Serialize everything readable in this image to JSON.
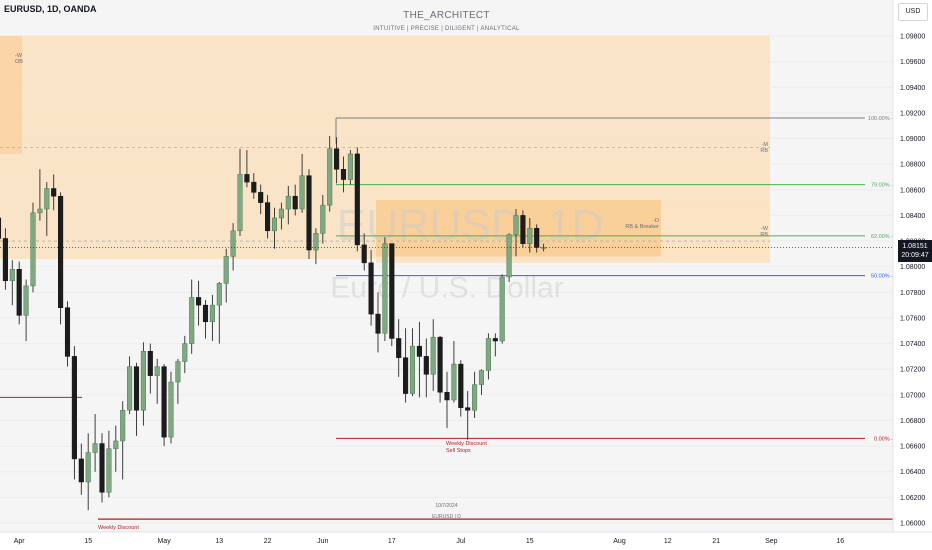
{
  "header": {
    "symbol": "EURUSD, 1D, OANDA",
    "brand": "THE_ARCHITECT",
    "tagline": "INTUITIVE | PRECISE | DILIGENT | ANALYTICAL",
    "currency_button": "USD"
  },
  "watermark": {
    "line1": "EURUSD, 1D",
    "line2": "Euro / U.S. Dollar"
  },
  "footer": {
    "date": "10/7/2024",
    "symbol_tf": "EURUSD | D"
  },
  "price_label": {
    "price": "1.08151",
    "countdown": "20:09:47"
  },
  "annotations": {
    "ob_w": "-W",
    "ob": "OB",
    "rb_m_1": "-M",
    "rb_m_2": "RB",
    "rb_d_1": "-D",
    "rb_d_2": "RB & Breaker",
    "rb_w_1": "-W",
    "rb_w_2": "RB",
    "weekly_discount": "Weekly Discount",
    "sell_stops": "Sell Stops",
    "weekly_discount_bottom": "Weekly Discount"
  },
  "colors": {
    "background": "#f5f5f5",
    "bull_body": "#7fa883",
    "bear_body": "#1c1c1c",
    "zone_orange_light": "#fbe2c2",
    "zone_orange_dark": "#f8c98c",
    "fib_green": "#4caf50",
    "fib_blue": "#2962ff",
    "fib_gray": "#787b86",
    "level_red": "#b71c1c"
  },
  "chart_data": {
    "type": "candlestick",
    "symbol": "EURUSD",
    "timeframe": "1D",
    "ylim": [
      1.0595,
      1.0995
    ],
    "y_ticks": [
      "1.09800",
      "1.09600",
      "1.09400",
      "1.09200",
      "1.09000",
      "1.08800",
      "1.08600",
      "1.08400",
      "1.08200",
      "1.08000",
      "1.07800",
      "1.07600",
      "1.07400",
      "1.07200",
      "1.07000",
      "1.06800",
      "1.06600",
      "1.06400",
      "1.06200",
      "1.06000"
    ],
    "x_ticks": [
      {
        "label": "Apr",
        "bar": 3
      },
      {
        "label": "15",
        "bar": 13
      },
      {
        "label": "May",
        "bar": 24
      },
      {
        "label": "13",
        "bar": 32
      },
      {
        "label": "22",
        "bar": 39
      },
      {
        "label": "Jun",
        "bar": 47
      },
      {
        "label": "17",
        "bar": 57
      },
      {
        "label": "Jul",
        "bar": 67
      },
      {
        "label": "15",
        "bar": 77
      },
      {
        "label": "Aug",
        "bar": 90
      },
      {
        "label": "12",
        "bar": 97
      },
      {
        "label": "21",
        "bar": 104
      },
      {
        "label": "Sep",
        "bar": 112
      },
      {
        "label": "16",
        "bar": 122
      }
    ],
    "candles": [
      [
        1.0838,
        1.0846,
        1.0815,
        1.0822
      ],
      [
        1.0822,
        1.083,
        1.0782,
        1.0789
      ],
      [
        1.0789,
        1.0805,
        1.077,
        1.0798
      ],
      [
        1.0798,
        1.0804,
        1.0755,
        1.0762
      ],
      [
        1.0762,
        1.079,
        1.0742,
        1.0785
      ],
      [
        1.0785,
        1.085,
        1.078,
        1.0842
      ],
      [
        1.0842,
        1.0876,
        1.0836,
        1.0845
      ],
      [
        1.0845,
        1.0866,
        1.0824,
        1.0861
      ],
      [
        1.0861,
        1.0872,
        1.0844,
        1.0855
      ],
      [
        1.0855,
        1.0858,
        1.0755,
        1.0768
      ],
      [
        1.0768,
        1.0773,
        1.0722,
        1.073
      ],
      [
        1.073,
        1.0738,
        1.0634,
        1.065
      ],
      [
        1.065,
        1.0662,
        1.0622,
        1.0632
      ],
      [
        1.0632,
        1.067,
        1.061,
        1.0655
      ],
      [
        1.0655,
        1.0685,
        1.064,
        1.0662
      ],
      [
        1.0662,
        1.067,
        1.0616,
        1.0624
      ],
      [
        1.0624,
        1.0672,
        1.062,
        1.0658
      ],
      [
        1.0658,
        1.0676,
        1.064,
        1.0664
      ],
      [
        1.0664,
        1.0695,
        1.0634,
        1.0688
      ],
      [
        1.0688,
        1.073,
        1.0685,
        1.0722
      ],
      [
        1.0722,
        1.0725,
        1.0668,
        1.0688
      ],
      [
        1.0688,
        1.0741,
        1.0676,
        1.0734
      ],
      [
        1.0734,
        1.074,
        1.0701,
        1.0715
      ],
      [
        1.0715,
        1.0728,
        1.0693,
        1.0722
      ],
      [
        1.0722,
        1.0724,
        1.066,
        1.0667
      ],
      [
        1.0667,
        1.0718,
        1.0662,
        1.071
      ],
      [
        1.071,
        1.0728,
        1.0693,
        1.0726
      ],
      [
        1.0726,
        1.0746,
        1.0717,
        1.074
      ],
      [
        1.074,
        1.079,
        1.0732,
        1.0776
      ],
      [
        1.0776,
        1.0789,
        1.0754,
        1.077
      ],
      [
        1.077,
        1.0774,
        1.0744,
        1.0757
      ],
      [
        1.0757,
        1.0778,
        1.0742,
        1.077
      ],
      [
        1.077,
        1.0788,
        1.074,
        1.0787
      ],
      [
        1.0787,
        1.0814,
        1.0772,
        1.0808
      ],
      [
        1.0808,
        1.0834,
        1.0797,
        1.0828
      ],
      [
        1.0828,
        1.0892,
        1.0824,
        1.0872
      ],
      [
        1.0872,
        1.0891,
        1.0862,
        1.0866
      ],
      [
        1.0866,
        1.0873,
        1.0853,
        1.0858
      ],
      [
        1.0858,
        1.0864,
        1.0841,
        1.085
      ],
      [
        1.085,
        1.0856,
        1.0822,
        1.0828
      ],
      [
        1.0828,
        1.0846,
        1.0814,
        1.0838
      ],
      [
        1.0838,
        1.085,
        1.0829,
        1.0845
      ],
      [
        1.0845,
        1.0863,
        1.0833,
        1.0855
      ],
      [
        1.0855,
        1.0864,
        1.084,
        1.0845
      ],
      [
        1.0845,
        1.0888,
        1.0842,
        1.0871
      ],
      [
        1.0871,
        1.0876,
        1.0806,
        1.0813
      ],
      [
        1.0813,
        1.083,
        1.0802,
        1.0826
      ],
      [
        1.0826,
        1.0856,
        1.0818,
        1.0848
      ],
      [
        1.0848,
        1.0902,
        1.0843,
        1.0892
      ],
      [
        1.0892,
        1.0901,
        1.0865,
        1.0876
      ],
      [
        1.0876,
        1.0886,
        1.0858,
        1.0868
      ],
      [
        1.0868,
        1.0891,
        1.0864,
        1.0888
      ],
      [
        1.0888,
        1.0893,
        1.0812,
        1.0817
      ],
      [
        1.0817,
        1.0826,
        1.0797,
        1.0803
      ],
      [
        1.0803,
        1.0813,
        1.0754,
        1.0763
      ],
      [
        1.0763,
        1.078,
        1.0733,
        1.0748
      ],
      [
        1.0748,
        1.0823,
        1.0742,
        1.0818
      ],
      [
        1.0818,
        1.0818,
        1.0738,
        1.0744
      ],
      [
        1.0744,
        1.0759,
        1.0714,
        1.0729
      ],
      [
        1.0729,
        1.0752,
        1.0694,
        1.0701
      ],
      [
        1.0701,
        1.0752,
        1.0699,
        1.0738
      ],
      [
        1.0738,
        1.0757,
        1.0698,
        1.073
      ],
      [
        1.073,
        1.0744,
        1.0698,
        1.0716
      ],
      [
        1.0716,
        1.0759,
        1.0703,
        1.0745
      ],
      [
        1.0745,
        1.0746,
        1.0694,
        1.0702
      ],
      [
        1.0702,
        1.0718,
        1.0674,
        1.0696
      ],
      [
        1.0696,
        1.0742,
        1.0694,
        1.0724
      ],
      [
        1.0724,
        1.0727,
        1.0683,
        1.069
      ],
      [
        1.069,
        1.0703,
        1.0665,
        1.0688
      ],
      [
        1.0688,
        1.0718,
        1.0682,
        1.0708
      ],
      [
        1.0708,
        1.072,
        1.07,
        1.0719
      ],
      [
        1.0719,
        1.0748,
        1.0712,
        1.0744
      ],
      [
        1.0744,
        1.0748,
        1.073,
        1.0742
      ],
      [
        1.0742,
        1.0794,
        1.074,
        1.0792
      ],
      [
        1.0792,
        1.0826,
        1.0788,
        1.0825
      ],
      [
        1.0825,
        1.0845,
        1.0808,
        1.084
      ],
      [
        1.084,
        1.0844,
        1.0815,
        1.0818
      ],
      [
        1.0818,
        1.0838,
        1.0811,
        1.083
      ],
      [
        1.083,
        1.0833,
        1.0811,
        1.0815
      ],
      [
        1.0815,
        1.0818,
        1.0812,
        1.0815
      ]
    ],
    "levels": [
      {
        "label": "100.00%",
        "price": 1.0916,
        "color": "#787b86"
      },
      {
        "label": "79.00%",
        "price": 1.0864,
        "color": "#4caf50"
      },
      {
        "label": "62.00%",
        "price": 1.0824,
        "color": "#4caf50"
      },
      {
        "label": "50.00%",
        "price": 1.0793,
        "color": "#2962ff"
      },
      {
        "label": "0.00%",
        "price": 1.0666,
        "color": "#b71c1c"
      }
    ],
    "current_price": 1.08151
  }
}
